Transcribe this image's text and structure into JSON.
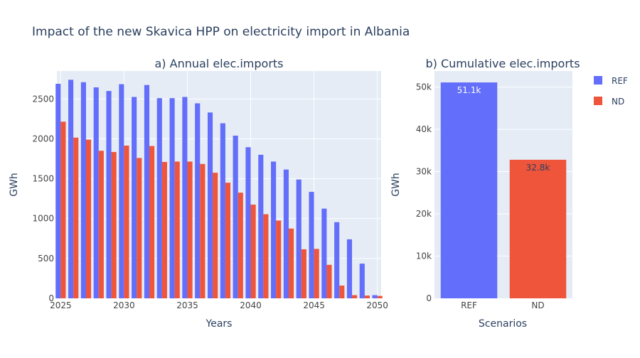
{
  "figure": {
    "title": "Impact of the new Skavica HPP on electricity import in Albania"
  },
  "colors": {
    "plot_bg": "#e5ecf6",
    "grid": "#ffffff",
    "REF": "#636efa",
    "ND": "#ef553b",
    "text": "#2a3f5f",
    "tick_text": "#444444"
  },
  "legend": {
    "placement": "top-right",
    "items": [
      {
        "name": "REF",
        "color": "#636efa"
      },
      {
        "name": "ND",
        "color": "#ef553b"
      }
    ]
  },
  "chart_data": [
    {
      "type": "bar",
      "title": "a) Annual elec.imports",
      "xlabel": "Years",
      "ylabel": "GWh",
      "xlim": [
        2024.7,
        2050.3
      ],
      "ylim": [
        0,
        2850
      ],
      "xticks": [
        2025,
        2030,
        2035,
        2040,
        2045,
        2050
      ],
      "yticks": [
        0,
        500,
        1000,
        1500,
        2000,
        2500
      ],
      "grid": true,
      "x": [
        2025,
        2026,
        2027,
        2028,
        2029,
        2030,
        2031,
        2032,
        2033,
        2034,
        2035,
        2036,
        2037,
        2038,
        2039,
        2040,
        2041,
        2042,
        2043,
        2044,
        2045,
        2046,
        2047,
        2048,
        2049,
        2050
      ],
      "series": [
        {
          "name": "REF",
          "values": [
            2690,
            2740,
            2710,
            2645,
            2600,
            2685,
            2525,
            2675,
            2510,
            2510,
            2525,
            2445,
            2330,
            2195,
            2040,
            1895,
            1800,
            1715,
            1615,
            1490,
            1335,
            1125,
            955,
            740,
            435,
            40
          ]
        },
        {
          "name": "ND",
          "values": [
            2215,
            2015,
            1990,
            1850,
            1835,
            1915,
            1760,
            1910,
            1710,
            1715,
            1715,
            1685,
            1575,
            1450,
            1325,
            1175,
            1055,
            975,
            875,
            615,
            620,
            420,
            160,
            40,
            35,
            30
          ]
        }
      ]
    },
    {
      "type": "bar",
      "title": "b) Cumulative elec.imports",
      "xlabel": "Scenarios",
      "ylabel": "GWh",
      "ylim": [
        0,
        53800
      ],
      "yticks": [
        0,
        10000,
        20000,
        30000,
        40000,
        50000
      ],
      "ytick_labels": [
        "0",
        "10k",
        "20k",
        "30k",
        "40k",
        "50k"
      ],
      "grid": true,
      "categories": [
        "REF",
        "ND"
      ],
      "values": [
        51100,
        32800
      ],
      "data_labels": [
        "51.1k",
        "32.8k"
      ]
    }
  ]
}
